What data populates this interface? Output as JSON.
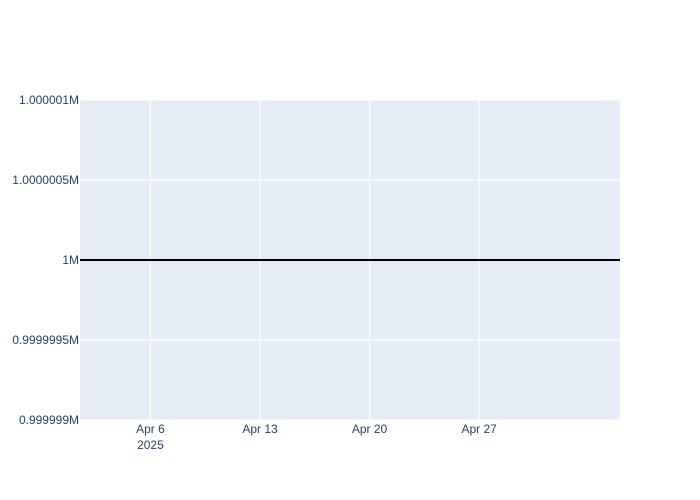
{
  "chart_data": {
    "type": "line",
    "title": "",
    "xlabel": "",
    "ylabel": "",
    "x_type": "date",
    "xlim": [
      "2025-04-01T12:00:00",
      "2025-05-06T00:00:00"
    ],
    "ylim": [
      999999,
      1000001
    ],
    "x_ticks": [
      {
        "value": "2025-04-06",
        "label": "Apr 6",
        "sublabel": "2025"
      },
      {
        "value": "2025-04-13",
        "label": "Apr 13"
      },
      {
        "value": "2025-04-20",
        "label": "Apr 20"
      },
      {
        "value": "2025-04-27",
        "label": "Apr 27"
      }
    ],
    "y_ticks": [
      {
        "value": 999999,
        "label": "0.999999M"
      },
      {
        "value": 999999.5,
        "label": "0.9999995M"
      },
      {
        "value": 1000000,
        "label": "1M"
      },
      {
        "value": 1000000.5,
        "label": "1.0000005M"
      },
      {
        "value": 1000001,
        "label": "1.000001M"
      }
    ],
    "series": [
      {
        "color": "#000000",
        "x": [
          "2025-04-01T12:00:00",
          "2025-05-06T00:00:00"
        ],
        "y": [
          1000000,
          1000000
        ]
      }
    ],
    "grid": true,
    "legend": "none",
    "plot_bgcolor": "#e5ecf6",
    "grid_color": "#ffffff",
    "tick_color": "#2a3f5f"
  }
}
